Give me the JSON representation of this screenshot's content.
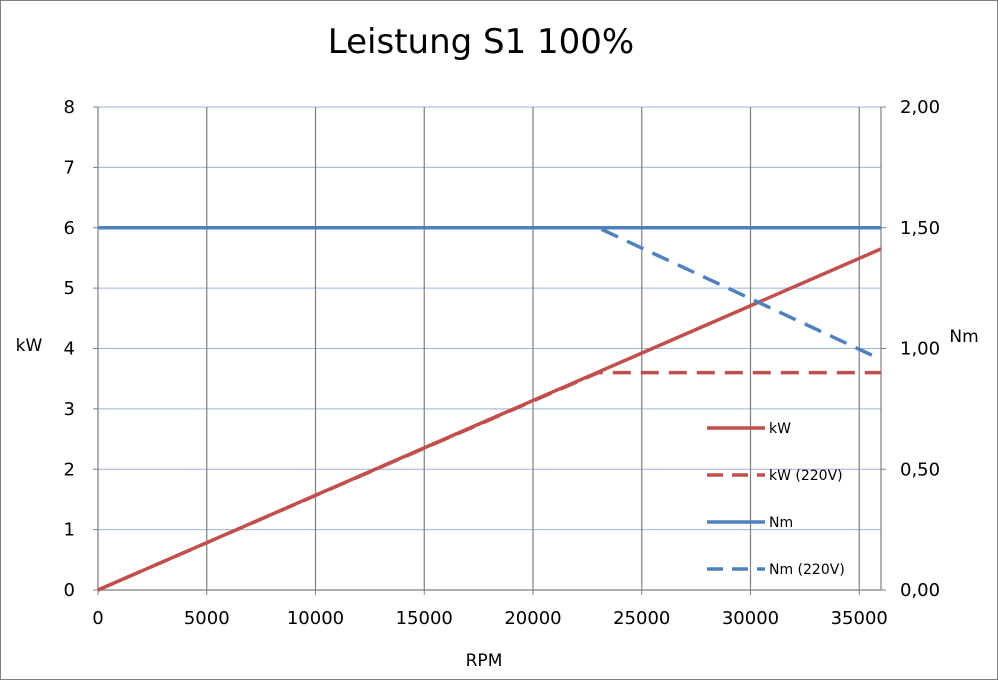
{
  "chart_data": {
    "type": "line",
    "title": "Leistung S1 100%",
    "xlabel": "RPM",
    "ylabel": "kW",
    "y2label": "Nm",
    "xlim": [
      0,
      36000
    ],
    "ylim": [
      0,
      8
    ],
    "y2lim": [
      0,
      2
    ],
    "x_ticks": [
      0,
      5000,
      10000,
      15000,
      20000,
      25000,
      30000,
      35000
    ],
    "x_tick_labels": [
      "0",
      "5000",
      "10000",
      "15000",
      "20000",
      "25000",
      "30000",
      "35000"
    ],
    "y_ticks": [
      0,
      1,
      2,
      3,
      4,
      5,
      6,
      7,
      8
    ],
    "y_tick_labels": [
      "0",
      "1",
      "2",
      "3",
      "4",
      "5",
      "6",
      "7",
      "8"
    ],
    "y2_ticks": [
      0,
      0.5,
      1,
      1.5,
      2
    ],
    "y2_tick_labels": [
      "0,00",
      "0,50",
      "1,00",
      "1,50",
      "2,00"
    ],
    "grid": true,
    "legend_position": "right",
    "series": [
      {
        "name": "kW",
        "axis": "left",
        "style": "solid",
        "color": "#c0504d",
        "x": [
          0,
          36000
        ],
        "y": [
          0,
          5.65
        ]
      },
      {
        "name": "kW (220V)",
        "axis": "left",
        "style": "dashed",
        "color": "#c0504d",
        "x": [
          0,
          23000,
          36000
        ],
        "y": [
          0,
          3.6,
          3.6
        ]
      },
      {
        "name": "Nm",
        "axis": "right",
        "style": "solid",
        "color": "#4f81bd",
        "x": [
          0,
          36000
        ],
        "y": [
          1.5,
          1.5
        ]
      },
      {
        "name": "Nm (220V)",
        "axis": "right",
        "style": "dashed",
        "color": "#4f81bd",
        "x": [
          0,
          23000,
          36000
        ],
        "y": [
          1.5,
          1.5,
          0.955
        ]
      }
    ]
  }
}
